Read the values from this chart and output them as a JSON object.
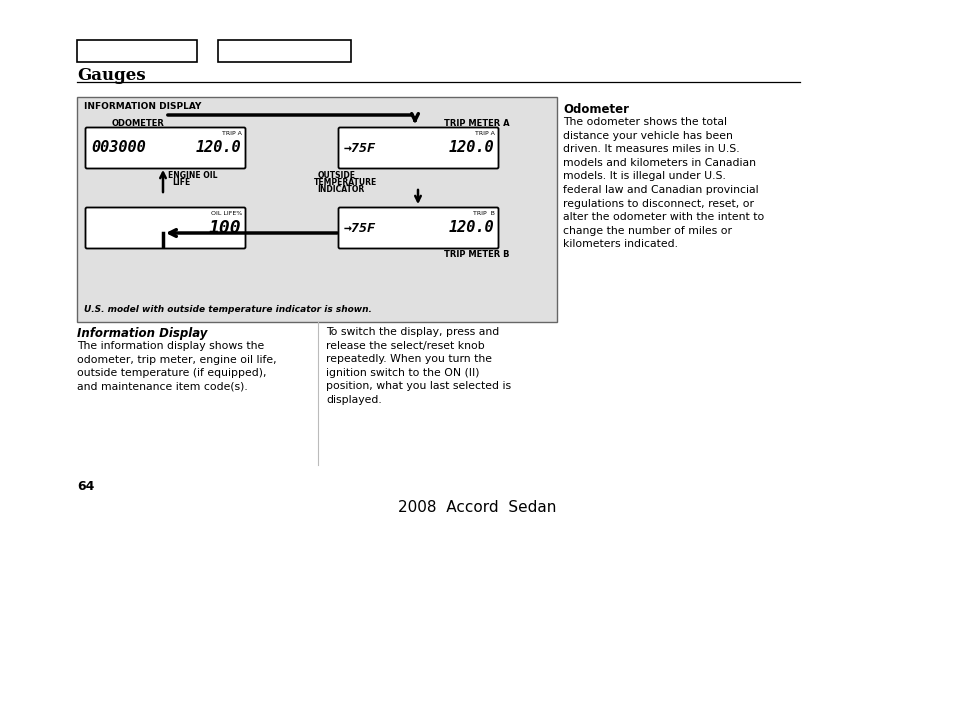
{
  "bg_color": "#ffffff",
  "title": "Gauges",
  "title_fontsize": 12,
  "footer_text": "2008  Accord  Sedan",
  "footer_fontsize": 11,
  "page_number": "64",
  "info_display_title": "INFORMATION DISPLAY",
  "odometer_label": "ODOMETER",
  "odometer_display": "003000",
  "odometer_trip_val": "120.0",
  "oil_life_label": "OIL LIFE%",
  "oil_life_val": "100",
  "trip_meter_a_label": "TRIP METER A",
  "trip_meter_b_label": "TRIP METER B",
  "temp_a_val": "→75F",
  "trip_a_val": "120.0",
  "temp_b_val": "→75F",
  "trip_b_label": "TRIP  B",
  "trip_b_val": "120.0",
  "footnote": "U.S. model with outside temperature indicator is shown.",
  "section_header_bold": "Information Display",
  "section_text_left": "The information display shows the\nodometer, trip meter, engine oil life,\noutside temperature (if equipped),\nand maintenance item code(s).",
  "section_text_right": "To switch the display, press and\nrelease the select/reset knob\nrepeatedly. When you turn the\nignition switch to the ON (II)\nposition, what you last selected is\ndisplayed.",
  "odometer_bold": "Odometer",
  "odometer_text": "The odometer shows the total\ndistance your vehicle has been\ndriven. It measures miles in U.S.\nmodels and kilometers in Canadian\nmodels. It is illegal under U.S.\nfederal law and Canadian provincial\nregulations to disconnect, reset, or\nalter the odometer with the intent to\nchange the number of miles or\nkilometers indicated."
}
